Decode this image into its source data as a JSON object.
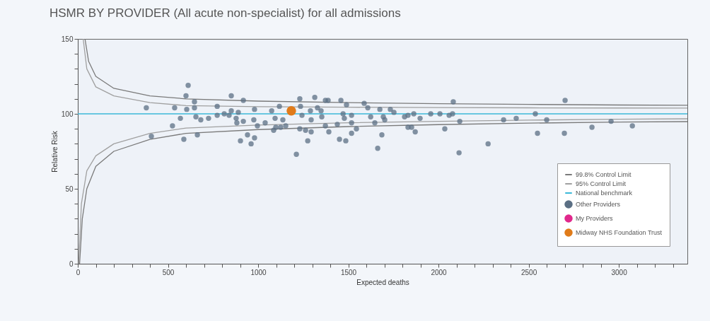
{
  "chart_data": {
    "type": "scatter",
    "title": "HSMR BY PROVIDER (All acute non-specialist) for all admissions",
    "xlabel": "Expected deaths",
    "ylabel": "Relative Risk",
    "xlim": [
      0,
      3380
    ],
    "ylim": [
      0,
      150
    ],
    "xticks": [
      0,
      {
        "value": 100,
        "label": null
      },
      {
        "value": 200,
        "label": null
      },
      {
        "value": 300,
        "label": null
      },
      {
        "value": 400,
        "label": null
      },
      500,
      {
        "value": 600,
        "label": null
      },
      {
        "value": 700,
        "label": null
      },
      {
        "value": 800,
        "label": null
      },
      {
        "value": 900,
        "label": null
      },
      1000,
      {
        "value": 1100,
        "label": null
      },
      {
        "value": 1200,
        "label": null
      },
      {
        "value": 1300,
        "label": null
      },
      {
        "value": 1400,
        "label": null
      },
      1500,
      {
        "value": 1600,
        "label": null
      },
      {
        "value": 1700,
        "label": null
      },
      {
        "value": 1800,
        "label": null
      },
      {
        "value": 1900,
        "label": null
      },
      2000,
      {
        "value": 2100,
        "label": null
      },
      {
        "value": 2200,
        "label": null
      },
      {
        "value": 2300,
        "label": null
      },
      {
        "value": 2400,
        "label": null
      },
      2500,
      {
        "value": 2600,
        "label": null
      },
      {
        "value": 2700,
        "label": null
      },
      {
        "value": 2800,
        "label": null
      },
      {
        "value": 2900,
        "label": null
      },
      3000,
      {
        "value": 3100,
        "label": null
      },
      {
        "value": 3200,
        "label": null
      },
      {
        "value": 3300,
        "label": null
      }
    ],
    "yticks": [
      0,
      {
        "value": 10,
        "label": null
      },
      {
        "value": 20,
        "label": null
      },
      {
        "value": 30,
        "label": null
      },
      {
        "value": 40,
        "label": null
      },
      50,
      {
        "value": 60,
        "label": null
      },
      {
        "value": 70,
        "label": null
      },
      {
        "value": 80,
        "label": null
      },
      {
        "value": 90,
        "label": null
      },
      100,
      {
        "value": 110,
        "label": null
      },
      {
        "value": 120,
        "label": null
      },
      {
        "value": 130,
        "label": null
      },
      {
        "value": 140,
        "label": null
      },
      150
    ],
    "grid": false,
    "legend": "bottom right",
    "marker": "circle",
    "ref_lines": [
      {
        "axis": "y",
        "value": 100,
        "label": "National benchmark",
        "color": "#3bb8d8"
      }
    ],
    "series": [
      {
        "name": "99.8% Control Limit",
        "type": "line",
        "marker": "none",
        "color": "#7a7a7a",
        "x": [
          40,
          60,
          100,
          200,
          400,
          600,
          1000,
          1500,
          2000,
          2500,
          3000,
          3380,
          null,
          10,
          25,
          50,
          100,
          200,
          400,
          600,
          1000,
          1500,
          2000,
          2500,
          3000,
          3380
        ],
        "values": [
          150,
          135,
          125,
          117,
          112,
          110,
          108.5,
          107.5,
          106.8,
          106.3,
          105.9,
          105.7,
          null,
          0,
          30,
          50,
          65,
          75,
          83,
          87,
          89.5,
          91.5,
          92.8,
          93.8,
          94.5,
          94.8
        ]
      },
      {
        "name": "95% Control Limit",
        "type": "line",
        "marker": "none",
        "color": "#a0a0a0",
        "x": [
          30,
          50,
          100,
          200,
          400,
          600,
          1000,
          1500,
          2000,
          2500,
          3000,
          3380,
          null,
          5,
          20,
          50,
          100,
          200,
          400,
          600,
          1000,
          1500,
          2000,
          2500,
          3000,
          3380
        ],
        "values": [
          150,
          130,
          118,
          112,
          107.5,
          105.5,
          104.8,
          104.4,
          104.2,
          104,
          103.9,
          103.8,
          null,
          0,
          40,
          62,
          72,
          80,
          87,
          90.5,
          92.5,
          94,
          95,
          95.8,
          96.4,
          96.7
        ]
      },
      {
        "name": "Other Providers",
        "type": "scatter",
        "color": "#5b6f84",
        "x": [
          612,
          600,
          647,
          851,
          918,
          380,
          537,
          604,
          647,
          773,
          569,
          655,
          682,
          725,
          773,
          812,
          851,
          839,
          890,
          878,
          918,
          882,
          980,
          976,
          996,
          525,
          408,
          588,
          663,
          941,
          902,
          980,
          961,
          1039,
          1075,
          1094,
          1098,
          1118,
          1086,
          1125,
          1137,
          1153,
          1231,
          1235,
          1243,
          1231,
          1263,
          1294,
          1275,
          1212,
          1314,
          1329,
          1290,
          1294,
          1349,
          1353,
          1373,
          1388,
          1373,
          1392,
          1459,
          1490,
          1471,
          1478,
          1439,
          1451,
          1486,
          1518,
          1518,
          1545,
          1518,
          1588,
          1608,
          1624,
          1647,
          1675,
          1694,
          1686,
          1663,
          1733,
          1753,
          1702,
          1812,
          1831,
          1863,
          1898,
          1831,
          1851,
          1871,
          1957,
          2008,
          2059,
          2078,
          2082,
          2035,
          2118,
          2114,
          2275,
          2361,
          2431,
          2537,
          2600,
          2549,
          2702,
          2698,
          2851,
          2957,
          3075
        ],
        "values": [
          119,
          112,
          108,
          112,
          109,
          104,
          104,
          103,
          104,
          105,
          97,
          98,
          96,
          97,
          99,
          100,
          102,
          99,
          101,
          97,
          95,
          94,
          103,
          96,
          92,
          92,
          85,
          83,
          86,
          86,
          82,
          84,
          80,
          94,
          102,
          97,
          91,
          105,
          89,
          91,
          96,
          92,
          110,
          105,
          99,
          90,
          89,
          88,
          82,
          73,
          111,
          104,
          102,
          96,
          102,
          98,
          109,
          109,
          92,
          88,
          109,
          106,
          100,
          97,
          93,
          83,
          82,
          99,
          94,
          90,
          87,
          107,
          104,
          98,
          94,
          103,
          98,
          86,
          77,
          103,
          101,
          96,
          98,
          99,
          100,
          97,
          91,
          91,
          88,
          100,
          100,
          99,
          100,
          108,
          90,
          95,
          74,
          80,
          96,
          97,
          100,
          96,
          87,
          109,
          87,
          91,
          95,
          92
        ]
      },
      {
        "name": "My Providers",
        "type": "scatter",
        "color": "#e0288c"
      },
      {
        "name": "Midway NHS Foundation Trust",
        "type": "scatter",
        "color": "#e07b1a",
        "x": [
          1184
        ],
        "values": [
          102
        ]
      }
    ]
  }
}
